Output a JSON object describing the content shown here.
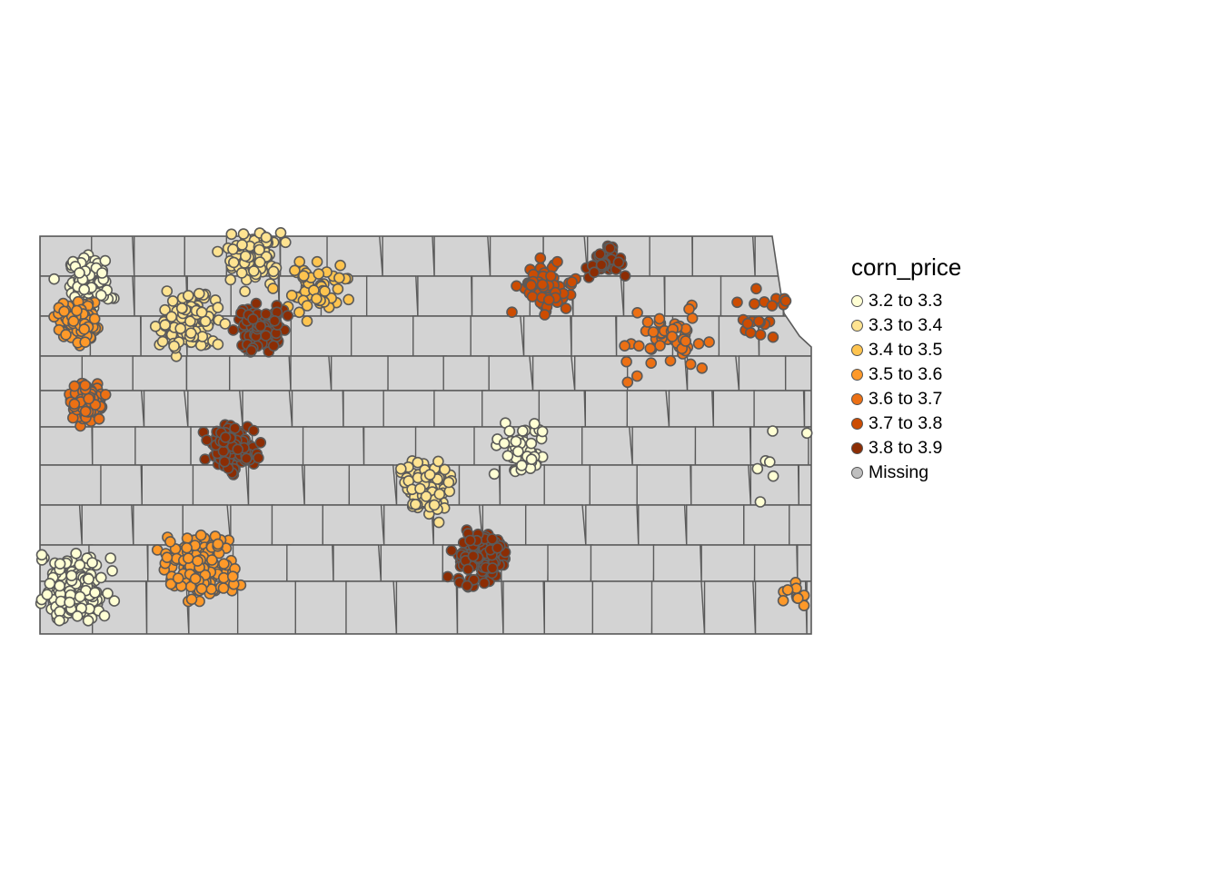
{
  "map": {
    "legend": {
      "title": "corn_price",
      "items": [
        {
          "label": "3.2 to 3.3",
          "color": "#FFFFD4"
        },
        {
          "label": "3.3 to 3.4",
          "color": "#FEE391"
        },
        {
          "label": "3.4 to 3.5",
          "color": "#FEC44F"
        },
        {
          "label": "3.5 to 3.6",
          "color": "#FE9929"
        },
        {
          "label": "3.6 to 3.7",
          "color": "#EC7014"
        },
        {
          "label": "3.7 to 3.8",
          "color": "#CC4C02"
        },
        {
          "label": "3.8 to 3.9",
          "color": "#8C2D04"
        },
        {
          "label": "Missing",
          "color": "#BFBFBF"
        }
      ]
    },
    "colors": {
      "county_fill": "#D3D3D3",
      "county_border": "#5A5A5A",
      "point_border": "#5A5A5A"
    }
  },
  "chart_data": {
    "type": "scatter",
    "title": "",
    "variable": "corn_price",
    "clusters": [
      {
        "bin": 0,
        "lon": -101.6,
        "lat": 39.65,
        "count": 110,
        "spread": 0.25
      },
      {
        "bin": 0,
        "lon": -101.7,
        "lat": 37.35,
        "count": 200,
        "spread": 0.35
      },
      {
        "bin": 1,
        "lon": -100.6,
        "lat": 39.35,
        "count": 130,
        "spread": 0.3
      },
      {
        "bin": 1,
        "lon": -100.0,
        "lat": 39.9,
        "count": 90,
        "spread": 0.35
      },
      {
        "bin": 2,
        "lon": -99.4,
        "lat": 39.6,
        "count": 60,
        "spread": 0.35
      },
      {
        "bin": 3,
        "lon": -101.7,
        "lat": 39.35,
        "count": 120,
        "spread": 0.2
      },
      {
        "bin": 4,
        "lon": -101.6,
        "lat": 38.75,
        "count": 120,
        "spread": 0.2
      },
      {
        "bin": 6,
        "lon": -100.2,
        "lat": 38.4,
        "count": 150,
        "spread": 0.25
      },
      {
        "bin": 6,
        "lon": -99.9,
        "lat": 39.3,
        "count": 110,
        "spread": 0.25
      },
      {
        "bin": 3,
        "lon": -100.5,
        "lat": 37.5,
        "count": 180,
        "spread": 0.35
      },
      {
        "bin": 1,
        "lon": -98.3,
        "lat": 38.1,
        "count": 80,
        "spread": 0.3
      },
      {
        "bin": 6,
        "lon": -97.8,
        "lat": 37.55,
        "count": 110,
        "spread": 0.3
      },
      {
        "bin": 5,
        "lon": -97.2,
        "lat": 39.6,
        "count": 70,
        "spread": 0.3
      },
      {
        "bin": 6,
        "lon": -96.6,
        "lat": 39.8,
        "count": 40,
        "spread": 0.2
      },
      {
        "bin": 0,
        "lon": -97.4,
        "lat": 38.4,
        "count": 60,
        "spread": 0.25
      },
      {
        "bin": 4,
        "lon": -96.0,
        "lat": 39.25,
        "count": 50,
        "spread": 0.4
      },
      {
        "bin": 5,
        "lon": -95.1,
        "lat": 39.4,
        "count": 20,
        "spread": 0.3
      },
      {
        "bin": 0,
        "lon": -94.9,
        "lat": 38.3,
        "count": 8,
        "spread": 0.5
      },
      {
        "bin": 3,
        "lon": -94.75,
        "lat": 37.3,
        "count": 10,
        "spread": 0.15
      }
    ]
  }
}
